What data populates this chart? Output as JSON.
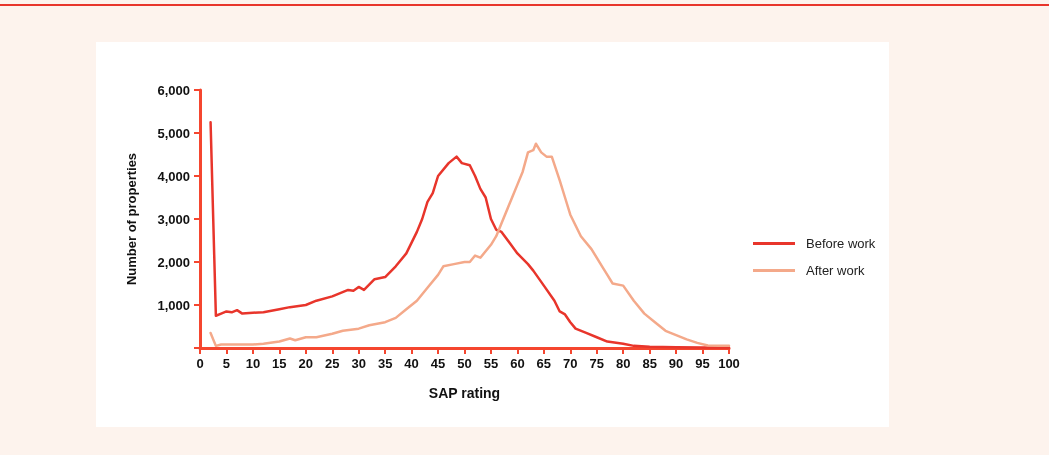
{
  "chart_data": {
    "type": "line",
    "xlabel": "SAP rating",
    "ylabel": "Number of properties",
    "xlim": [
      0,
      100
    ],
    "xticks": [
      0,
      5,
      10,
      15,
      20,
      25,
      30,
      35,
      40,
      45,
      50,
      55,
      60,
      65,
      70,
      75,
      80,
      85,
      90,
      95,
      100
    ],
    "ylim": [
      0,
      6000
    ],
    "yticks": [
      {
        "value": 0,
        "label": null
      },
      {
        "value": 1000,
        "label": "1,000"
      },
      {
        "value": 2000,
        "label": "2,000"
      },
      {
        "value": 3000,
        "label": "3,000"
      },
      {
        "value": 4000,
        "label": "4,000"
      },
      {
        "value": 5000,
        "label": "5,000"
      },
      {
        "value": 6000,
        "label": "6,000"
      }
    ],
    "grid": false,
    "legend": "right",
    "marker": "none",
    "line_style": "solid",
    "series": [
      {
        "name": "Before work",
        "color": "#e8352b",
        "x": [
          2,
          2.5,
          3,
          4,
          5,
          6,
          7,
          8,
          10,
          12,
          15,
          17,
          20,
          22,
          25,
          28,
          29,
          30,
          31,
          33,
          35,
          37,
          39,
          41,
          42,
          43,
          44,
          45,
          47,
          48.5,
          49.5,
          51,
          52,
          53,
          54,
          55,
          56,
          57,
          60,
          62,
          63,
          65,
          67,
          68,
          69,
          70,
          71,
          73,
          75,
          77,
          80,
          82,
          85,
          90,
          95,
          100
        ],
        "values": [
          5250,
          3000,
          750,
          800,
          850,
          830,
          880,
          800,
          820,
          830,
          900,
          950,
          1000,
          1100,
          1200,
          1350,
          1330,
          1420,
          1350,
          1600,
          1650,
          1900,
          2200,
          2700,
          3000,
          3400,
          3600,
          4000,
          4300,
          4450,
          4300,
          4250,
          4000,
          3700,
          3500,
          3000,
          2750,
          2700,
          2200,
          1950,
          1800,
          1450,
          1100,
          850,
          780,
          600,
          450,
          350,
          250,
          150,
          100,
          50,
          30,
          20,
          10,
          10
        ]
      },
      {
        "name": "After work",
        "color": "#f4a98a",
        "x": [
          2,
          3,
          4,
          10,
          12,
          15,
          17,
          18,
          20,
          22,
          25,
          27,
          30,
          32,
          35,
          37,
          39,
          41,
          43,
          45,
          46,
          48,
          50,
          51,
          52,
          53,
          55,
          56,
          57,
          59,
          60,
          61,
          62,
          63,
          63.5,
          64.5,
          65.5,
          66.5,
          68,
          69,
          70,
          72,
          74,
          76,
          77,
          78,
          80,
          82,
          84,
          86,
          88,
          90,
          92,
          94,
          96,
          98,
          100
        ],
        "values": [
          350,
          50,
          80,
          80,
          100,
          150,
          220,
          180,
          250,
          250,
          330,
          400,
          450,
          530,
          600,
          700,
          900,
          1100,
          1400,
          1700,
          1900,
          1950,
          2000,
          2000,
          2150,
          2100,
          2400,
          2600,
          2900,
          3500,
          3800,
          4100,
          4550,
          4600,
          4750,
          4550,
          4450,
          4450,
          3900,
          3500,
          3100,
          2600,
          2300,
          1900,
          1700,
          1500,
          1450,
          1100,
          800,
          600,
          400,
          300,
          200,
          120,
          60,
          50,
          50
        ]
      }
    ]
  }
}
